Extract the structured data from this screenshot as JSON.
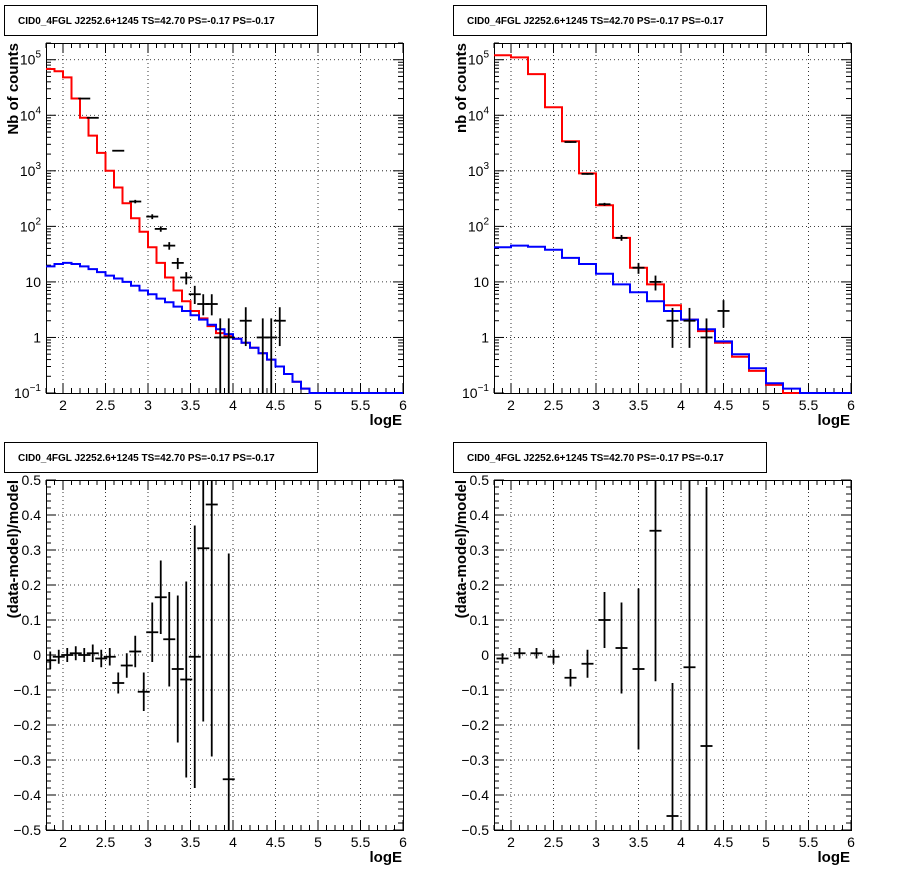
{
  "chart_data": [
    {
      "type": "line",
      "title": "CID0_4FGL J2252.6+1245 TS=42.70 PS=-0.17 PS=-0.17",
      "xlabel": "logE",
      "ylabel": "Nb of counts",
      "xlim": [
        1.8,
        6.0
      ],
      "ylim": [
        0.1,
        200000
      ],
      "yscale": "log",
      "grid": true,
      "xticks": [
        "2",
        "2.5",
        "3",
        "3.5",
        "4",
        "4.5",
        "5",
        "5.5",
        "6"
      ],
      "yticks": [
        {
          "base": "10",
          "exp": "−1",
          "value": 0.1
        },
        {
          "base": "1",
          "exp": "",
          "value": 1
        },
        {
          "base": "10",
          "exp": "",
          "value": 10
        },
        {
          "base": "10",
          "exp": "2",
          "value": 100
        },
        {
          "base": "10",
          "exp": "3",
          "value": 1000
        },
        {
          "base": "10",
          "exp": "4",
          "value": 10000
        },
        {
          "base": "10",
          "exp": "5",
          "value": 100000
        }
      ],
      "series": [
        {
          "color": "#ff0000",
          "edges": [
            1.8,
            1.9,
            2.0,
            2.1,
            2.2,
            2.3,
            2.4,
            2.5,
            2.6,
            2.7,
            2.8,
            2.9,
            3.0,
            3.1,
            3.2,
            3.3,
            3.4,
            3.5,
            3.6,
            3.7,
            3.8,
            3.9,
            4.0,
            4.1,
            4.2,
            4.3,
            4.4,
            4.5,
            4.6,
            4.7,
            4.8,
            4.9,
            5.0,
            5.1,
            5.2,
            5.3,
            5.4,
            5.5,
            5.6,
            5.7,
            5.8,
            5.9,
            6.0
          ],
          "values": [
            68000,
            62000,
            48000,
            20000,
            9000,
            4300,
            2100,
            1000,
            500,
            260,
            140,
            80,
            42,
            22,
            12,
            7,
            4.5,
            3.0,
            2.2,
            1.6,
            1.2,
            1.05,
            0.95,
            0.8,
            0.65,
            0.52,
            0.4,
            0.3,
            0.22,
            0.16,
            0.12,
            0.1,
            0.1,
            0.1,
            0.1,
            0.1,
            0.1,
            0.1,
            0.1,
            0.1,
            0.1,
            0.1
          ]
        },
        {
          "color": "#0000ff",
          "edges": [
            1.8,
            1.9,
            2.0,
            2.1,
            2.2,
            2.3,
            2.4,
            2.5,
            2.6,
            2.7,
            2.8,
            2.9,
            3.0,
            3.1,
            3.2,
            3.3,
            3.4,
            3.5,
            3.6,
            3.7,
            3.8,
            3.9,
            4.0,
            4.1,
            4.2,
            4.3,
            4.4,
            4.5,
            4.6,
            4.7,
            4.8,
            4.9,
            5.0,
            5.1,
            5.2,
            5.3,
            5.4,
            5.5,
            5.6,
            5.7,
            5.8,
            5.9,
            6.0
          ],
          "values": [
            19,
            21,
            22,
            21,
            19,
            17,
            15,
            13,
            11.5,
            10,
            8.5,
            7,
            6,
            5,
            4.3,
            3.6,
            3.0,
            2.5,
            2.1,
            1.7,
            1.4,
            1.15,
            0.95,
            0.8,
            0.65,
            0.52,
            0.4,
            0.3,
            0.22,
            0.16,
            0.12,
            0.1,
            0.1,
            0.1,
            0.1,
            0.1,
            0.1,
            0.1,
            0.1,
            0.1,
            0.1,
            0.1
          ]
        }
      ],
      "points": [
        {
          "x": 2.25,
          "y": 20000,
          "ylo": 19800,
          "yhi": 20200
        },
        {
          "x": 2.35,
          "y": 9000,
          "ylo": 8900,
          "yhi": 9100
        },
        {
          "x": 2.65,
          "y": 2300,
          "ylo": 2250,
          "yhi": 2350
        },
        {
          "x": 2.85,
          "y": 280,
          "ylo": 260,
          "yhi": 300
        },
        {
          "x": 3.05,
          "y": 150,
          "ylo": 135,
          "yhi": 165
        },
        {
          "x": 3.15,
          "y": 90,
          "ylo": 80,
          "yhi": 100
        },
        {
          "x": 3.25,
          "y": 45,
          "ylo": 38,
          "yhi": 52
        },
        {
          "x": 3.35,
          "y": 22,
          "ylo": 17,
          "yhi": 27
        },
        {
          "x": 3.45,
          "y": 12,
          "ylo": 9,
          "yhi": 15
        },
        {
          "x": 3.55,
          "y": 6,
          "ylo": 4,
          "yhi": 8.5
        },
        {
          "x": 3.65,
          "y": 4,
          "ylo": 2.5,
          "yhi": 6
        },
        {
          "x": 3.75,
          "y": 4,
          "ylo": 2.5,
          "yhi": 6
        },
        {
          "x": 3.85,
          "y": 1,
          "ylo": 0.1,
          "yhi": 2.2
        },
        {
          "x": 3.95,
          "y": 1,
          "ylo": 0.1,
          "yhi": 2.2
        },
        {
          "x": 4.15,
          "y": 2,
          "ylo": 0.7,
          "yhi": 3.5
        },
        {
          "x": 4.35,
          "y": 1,
          "ylo": 0.1,
          "yhi": 2.2
        },
        {
          "x": 4.45,
          "y": 1,
          "ylo": 0.1,
          "yhi": 2.2
        },
        {
          "x": 4.55,
          "y": 2,
          "ylo": 0.7,
          "yhi": 3.5
        }
      ]
    },
    {
      "type": "line",
      "title": "CID0_4FGL J2252.6+1245 TS=42.70 PS=-0.17 PS=-0.17",
      "xlabel": "logE",
      "ylabel": "nb of counts",
      "xlim": [
        1.8,
        6.0
      ],
      "ylim": [
        0.1,
        200000
      ],
      "yscale": "log",
      "grid": true,
      "xticks": [
        "2",
        "2.5",
        "3",
        "3.5",
        "4",
        "4.5",
        "5",
        "5.5",
        "6"
      ],
      "yticks": [
        {
          "base": "10",
          "exp": "−1",
          "value": 0.1
        },
        {
          "base": "1",
          "exp": "",
          "value": 1
        },
        {
          "base": "10",
          "exp": "",
          "value": 10
        },
        {
          "base": "10",
          "exp": "2",
          "value": 100
        },
        {
          "base": "10",
          "exp": "3",
          "value": 1000
        },
        {
          "base": "10",
          "exp": "4",
          "value": 10000
        },
        {
          "base": "10",
          "exp": "5",
          "value": 100000
        }
      ],
      "series": [
        {
          "color": "#ff0000",
          "edges": [
            1.8,
            2.0,
            2.2,
            2.4,
            2.6,
            2.8,
            3.0,
            3.2,
            3.4,
            3.6,
            3.8,
            4.0,
            4.2,
            4.4,
            4.6,
            4.8,
            5.0,
            5.2,
            5.4,
            5.6,
            5.8,
            6.0
          ],
          "values": [
            120000,
            110000,
            55000,
            14000,
            3400,
            900,
            240,
            62,
            18,
            9,
            3.8,
            2.1,
            1.3,
            0.8,
            0.45,
            0.25,
            0.14,
            0.1,
            0.1,
            0.1,
            0.1
          ]
        },
        {
          "color": "#0000ff",
          "edges": [
            1.8,
            2.0,
            2.2,
            2.4,
            2.6,
            2.8,
            3.0,
            3.2,
            3.4,
            3.6,
            3.8,
            4.0,
            4.2,
            4.4,
            4.6,
            4.8,
            5.0,
            5.2,
            5.4,
            5.6,
            5.8,
            6.0
          ],
          "values": [
            42,
            45,
            43,
            38,
            27,
            21,
            14,
            9,
            6.5,
            4.5,
            3.0,
            2.1,
            1.4,
            0.85,
            0.5,
            0.28,
            0.15,
            0.12,
            0.1,
            0.1,
            0.1
          ]
        }
      ],
      "points": [
        {
          "x": 2.7,
          "y": 3300,
          "ylo": 3200,
          "yhi": 3400
        },
        {
          "x": 2.9,
          "y": 880,
          "ylo": 850,
          "yhi": 910
        },
        {
          "x": 3.1,
          "y": 250,
          "ylo": 235,
          "yhi": 265
        },
        {
          "x": 3.3,
          "y": 62,
          "ylo": 55,
          "yhi": 70
        },
        {
          "x": 3.5,
          "y": 18,
          "ylo": 14,
          "yhi": 22
        },
        {
          "x": 3.7,
          "y": 10,
          "ylo": 7,
          "yhi": 13
        },
        {
          "x": 3.9,
          "y": 2,
          "ylo": 0.65,
          "yhi": 3.4
        },
        {
          "x": 4.1,
          "y": 2,
          "ylo": 0.65,
          "yhi": 3.4
        },
        {
          "x": 4.3,
          "y": 1,
          "ylo": 0.1,
          "yhi": 2.2
        },
        {
          "x": 4.5,
          "y": 3,
          "ylo": 1.5,
          "yhi": 4.7
        }
      ]
    },
    {
      "type": "scatter",
      "title": "CID0_4FGL J2252.6+1245 TS=42.70 PS=-0.17 PS=-0.17",
      "xlabel": "logE",
      "ylabel": "(data-model)/model",
      "xlim": [
        1.8,
        6.0
      ],
      "ylim": [
        -0.5,
        0.5
      ],
      "yscale": "linear",
      "grid": true,
      "xticks": [
        "2",
        "2.5",
        "3",
        "3.5",
        "4",
        "4.5",
        "5",
        "5.5",
        "6"
      ],
      "yticks": [
        {
          "base": "−0.5",
          "exp": "",
          "value": -0.5
        },
        {
          "base": "−0.4",
          "exp": "",
          "value": -0.4
        },
        {
          "base": "−0.3",
          "exp": "",
          "value": -0.3
        },
        {
          "base": "−0.2",
          "exp": "",
          "value": -0.2
        },
        {
          "base": "−0.1",
          "exp": "",
          "value": -0.1
        },
        {
          "base": "0",
          "exp": "",
          "value": 0
        },
        {
          "base": "0.1",
          "exp": "",
          "value": 0.1
        },
        {
          "base": "0.2",
          "exp": "",
          "value": 0.2
        },
        {
          "base": "0.3",
          "exp": "",
          "value": 0.3
        },
        {
          "base": "0.4",
          "exp": "",
          "value": 0.4
        },
        {
          "base": "0.5",
          "exp": "",
          "value": 0.5
        }
      ],
      "series": [],
      "points": [
        {
          "x": 1.85,
          "y": -0.015,
          "ylo": -0.04,
          "yhi": 0.01
        },
        {
          "x": 1.95,
          "y": -0.005,
          "ylo": -0.025,
          "yhi": 0.015
        },
        {
          "x": 2.05,
          "y": 0.0,
          "ylo": -0.02,
          "yhi": 0.02
        },
        {
          "x": 2.15,
          "y": 0.005,
          "ylo": -0.015,
          "yhi": 0.025
        },
        {
          "x": 2.25,
          "y": 0.0,
          "ylo": -0.02,
          "yhi": 0.02
        },
        {
          "x": 2.35,
          "y": 0.005,
          "ylo": -0.02,
          "yhi": 0.03
        },
        {
          "x": 2.45,
          "y": -0.01,
          "ylo": -0.035,
          "yhi": 0.015
        },
        {
          "x": 2.55,
          "y": -0.005,
          "ylo": -0.03,
          "yhi": 0.02
        },
        {
          "x": 2.65,
          "y": -0.08,
          "ylo": -0.11,
          "yhi": -0.05
        },
        {
          "x": 2.75,
          "y": -0.03,
          "ylo": -0.065,
          "yhi": 0.005
        },
        {
          "x": 2.85,
          "y": 0.01,
          "ylo": -0.035,
          "yhi": 0.055
        },
        {
          "x": 2.95,
          "y": -0.105,
          "ylo": -0.16,
          "yhi": -0.05
        },
        {
          "x": 3.05,
          "y": 0.065,
          "ylo": -0.02,
          "yhi": 0.15
        },
        {
          "x": 3.15,
          "y": 0.165,
          "ylo": 0.06,
          "yhi": 0.27
        },
        {
          "x": 3.25,
          "y": 0.045,
          "ylo": -0.09,
          "yhi": 0.18
        },
        {
          "x": 3.35,
          "y": -0.04,
          "ylo": -0.25,
          "yhi": 0.17
        },
        {
          "x": 3.45,
          "y": -0.07,
          "ylo": -0.35,
          "yhi": 0.21
        },
        {
          "x": 3.55,
          "y": -0.005,
          "ylo": -0.38,
          "yhi": 0.37
        },
        {
          "x": 3.65,
          "y": 0.305,
          "ylo": -0.19,
          "yhi": 0.5
        },
        {
          "x": 3.75,
          "y": 0.43,
          "ylo": -0.29,
          "yhi": 0.5
        },
        {
          "x": 3.95,
          "y": -0.355,
          "ylo": -0.5,
          "yhi": 0.29
        }
      ]
    },
    {
      "type": "scatter",
      "title": "CID0_4FGL J2252.6+1245 TS=42.70 PS=-0.17 PS=-0.17",
      "xlabel": "logE",
      "ylabel": "(data-model)/model",
      "xlim": [
        1.8,
        6.0
      ],
      "ylim": [
        -0.5,
        0.5
      ],
      "yscale": "linear",
      "grid": true,
      "xticks": [
        "2",
        "2.5",
        "3",
        "3.5",
        "4",
        "4.5",
        "5",
        "5.5",
        "6"
      ],
      "yticks": [
        {
          "base": "−0.5",
          "exp": "",
          "value": -0.5
        },
        {
          "base": "−0.4",
          "exp": "",
          "value": -0.4
        },
        {
          "base": "−0.3",
          "exp": "",
          "value": -0.3
        },
        {
          "base": "−0.2",
          "exp": "",
          "value": -0.2
        },
        {
          "base": "−0.1",
          "exp": "",
          "value": -0.1
        },
        {
          "base": "0",
          "exp": "",
          "value": 0
        },
        {
          "base": "0.1",
          "exp": "",
          "value": 0.1
        },
        {
          "base": "0.2",
          "exp": "",
          "value": 0.2
        },
        {
          "base": "0.3",
          "exp": "",
          "value": 0.3
        },
        {
          "base": "0.4",
          "exp": "",
          "value": 0.4
        },
        {
          "base": "0.5",
          "exp": "",
          "value": 0.5
        }
      ],
      "series": [],
      "points": [
        {
          "x": 1.9,
          "y": -0.01,
          "ylo": -0.025,
          "yhi": 0.005
        },
        {
          "x": 2.1,
          "y": 0.005,
          "ylo": -0.01,
          "yhi": 0.02
        },
        {
          "x": 2.3,
          "y": 0.005,
          "ylo": -0.01,
          "yhi": 0.02
        },
        {
          "x": 2.5,
          "y": -0.005,
          "ylo": -0.025,
          "yhi": 0.015
        },
        {
          "x": 2.7,
          "y": -0.065,
          "ylo": -0.09,
          "yhi": -0.04
        },
        {
          "x": 2.9,
          "y": -0.025,
          "ylo": -0.065,
          "yhi": 0.015
        },
        {
          "x": 3.1,
          "y": 0.1,
          "ylo": 0.02,
          "yhi": 0.18
        },
        {
          "x": 3.3,
          "y": 0.02,
          "ylo": -0.11,
          "yhi": 0.15
        },
        {
          "x": 3.5,
          "y": -0.04,
          "ylo": -0.27,
          "yhi": 0.19
        },
        {
          "x": 3.7,
          "y": 0.355,
          "ylo": -0.075,
          "yhi": 0.5
        },
        {
          "x": 3.9,
          "y": -0.46,
          "ylo": -0.5,
          "yhi": -0.08
        },
        {
          "x": 4.1,
          "y": -0.035,
          "ylo": -0.5,
          "yhi": 0.5
        },
        {
          "x": 4.3,
          "y": -0.26,
          "ylo": -0.5,
          "yhi": 0.48
        }
      ]
    }
  ]
}
